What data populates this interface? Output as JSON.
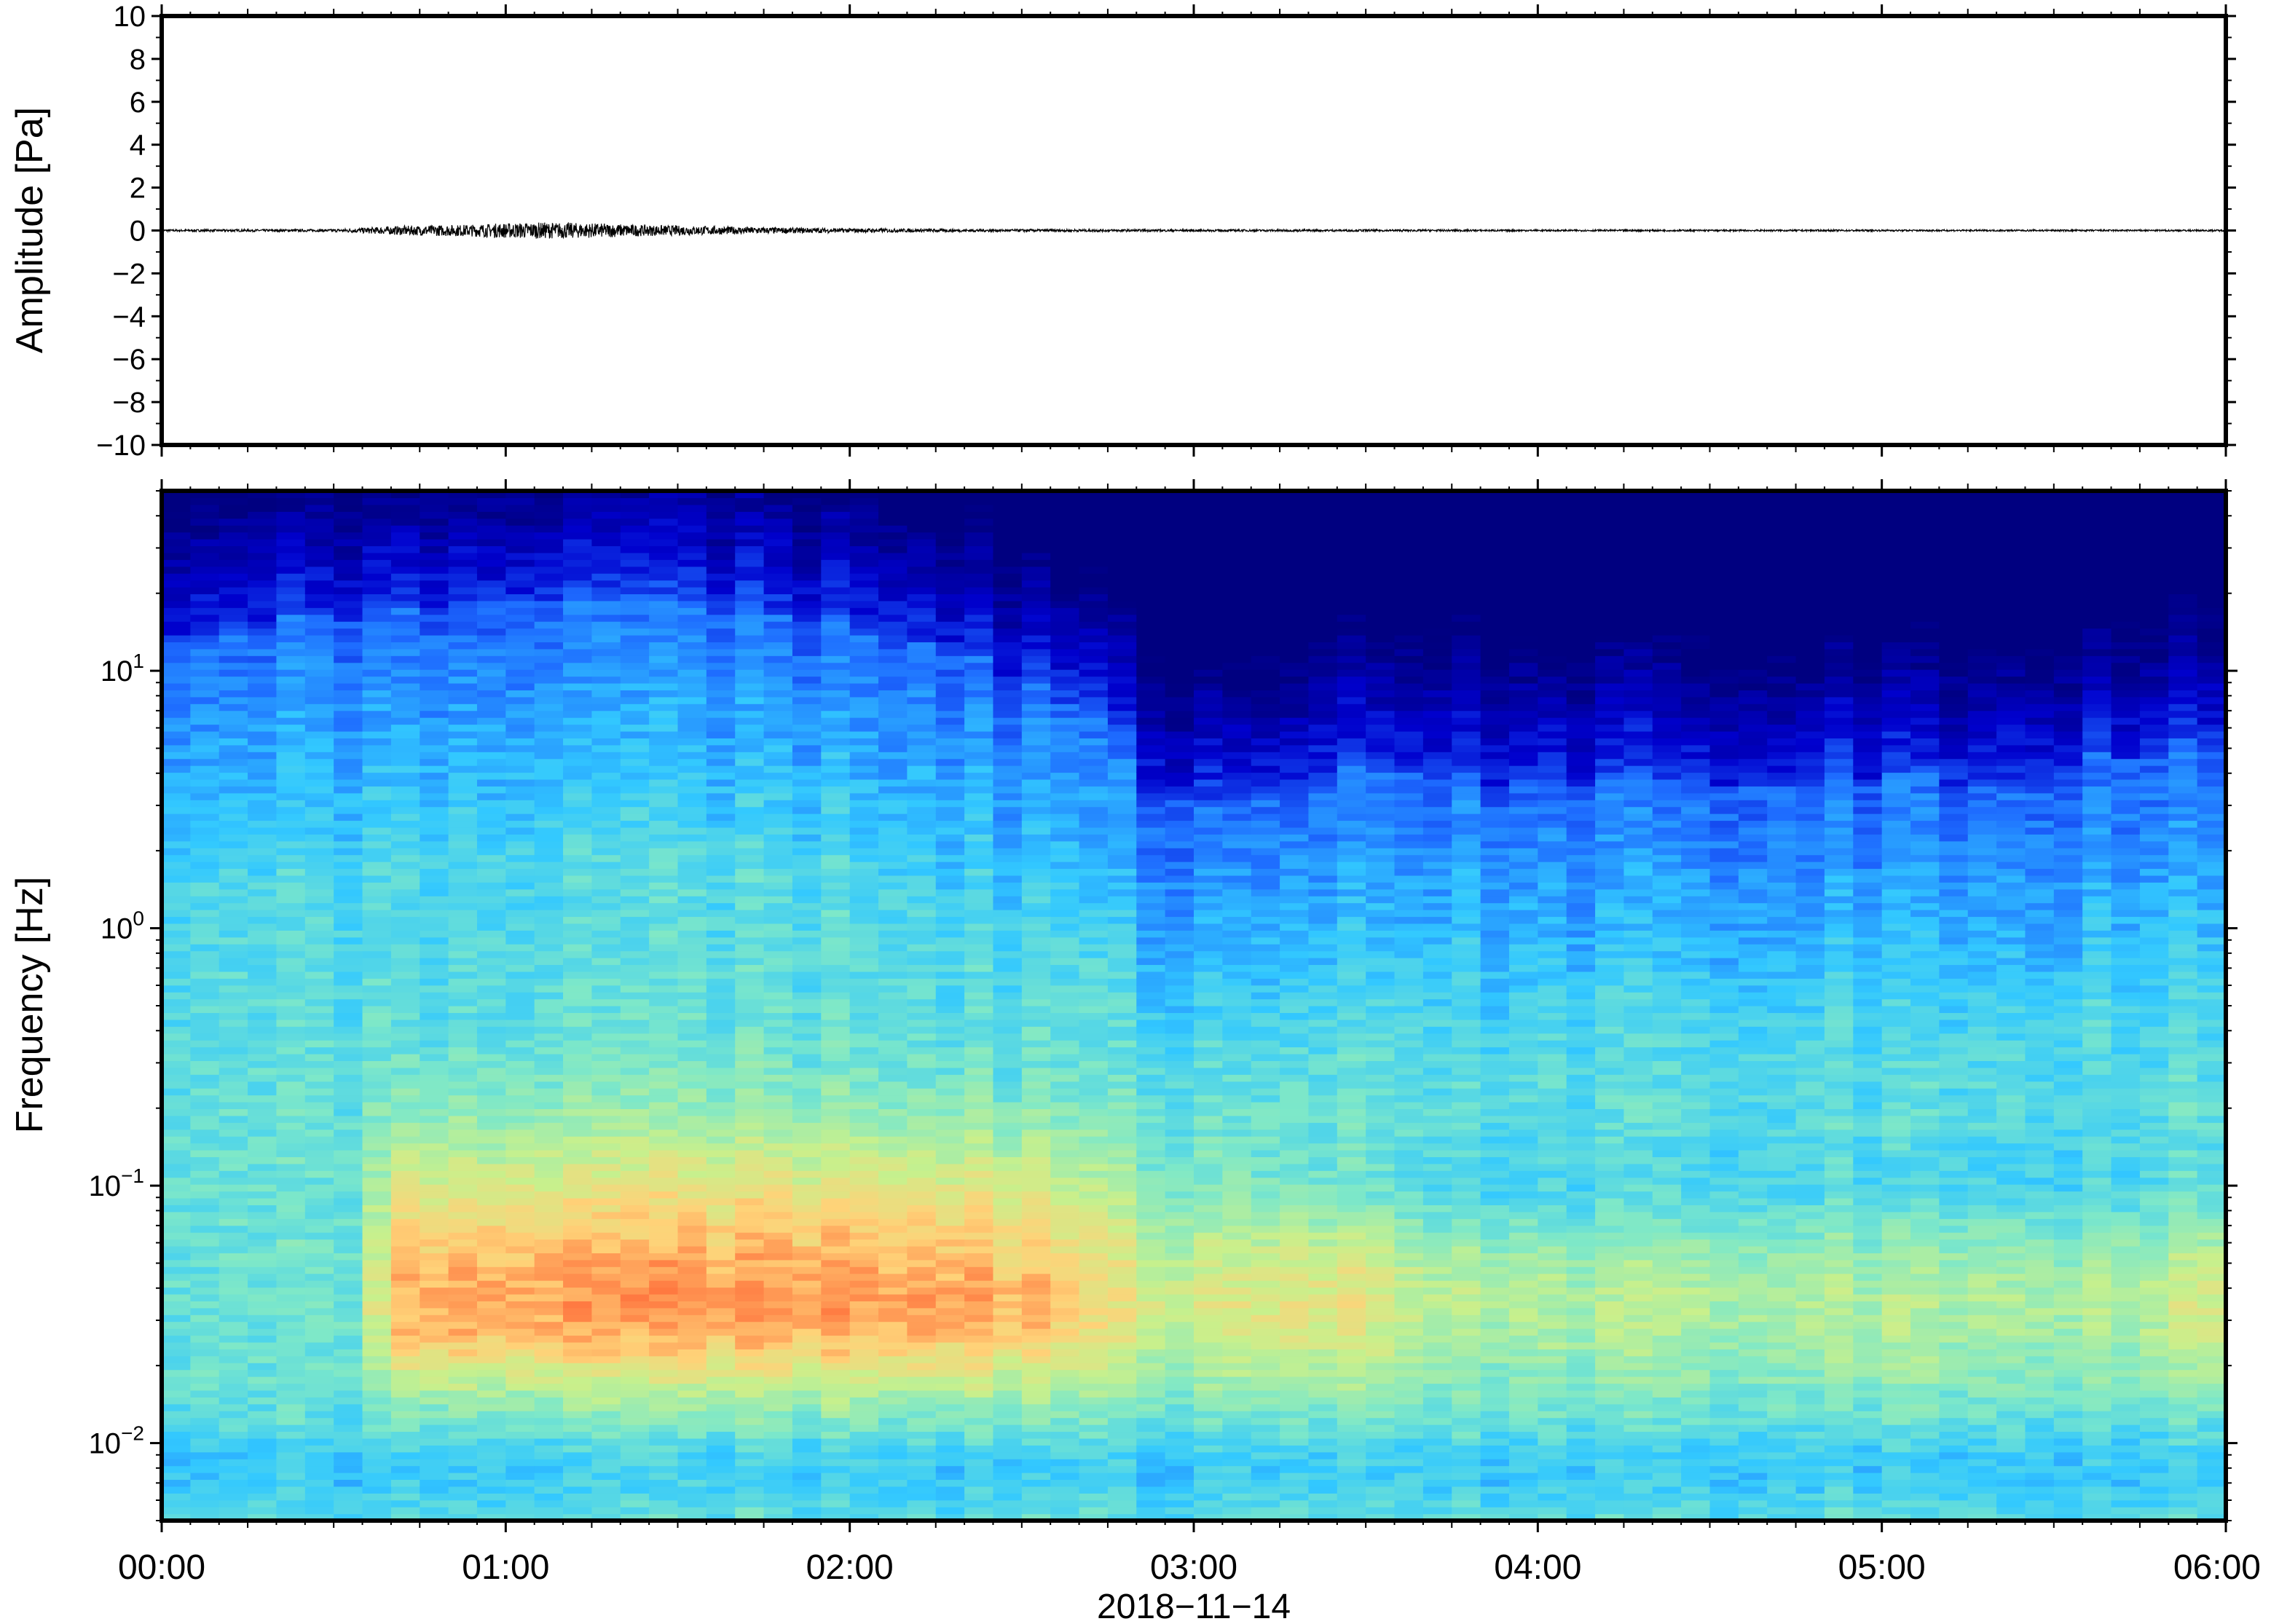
{
  "chart_data": [
    {
      "type": "line",
      "panel": "waveform",
      "ylabel": "Amplitude [Pa]",
      "ylim": [
        -10,
        10
      ],
      "yticks": [
        -10,
        -8,
        -6,
        -4,
        -2,
        0,
        2,
        4,
        6,
        8,
        10
      ],
      "ytick_labels": [
        "−10",
        "−8",
        "−6",
        "−4",
        "−2",
        "0",
        "2",
        "4",
        "6",
        "8",
        "10"
      ],
      "xlim": [
        "00:00",
        "06:00"
      ],
      "x_hours": [
        0,
        0.5,
        0.7,
        0.9,
        1.0,
        1.1,
        1.2,
        1.3,
        1.4,
        1.6,
        1.8,
        2.0,
        2.3,
        2.6,
        3.0,
        3.5,
        4.0,
        5.0,
        6.0
      ],
      "envelope": [
        0.05,
        0.06,
        0.22,
        0.28,
        0.35,
        0.38,
        0.36,
        0.32,
        0.26,
        0.2,
        0.14,
        0.1,
        0.07,
        0.06,
        0.05,
        0.05,
        0.04,
        0.04,
        0.04
      ],
      "grid": false
    },
    {
      "type": "heatmap",
      "panel": "spectrogram",
      "ylabel": "Frequency [Hz]",
      "yscale": "log",
      "ylim": [
        0.005,
        50
      ],
      "yticks": [
        0.01,
        0.1,
        1,
        10
      ],
      "ytick_labels": [
        {
          "base": "10",
          "exp": "−2"
        },
        {
          "base": "10",
          "exp": "−1"
        },
        {
          "base": "10",
          "exp": "0"
        },
        {
          "base": "10",
          "exp": "1"
        }
      ],
      "xlim": [
        "00:00",
        "06:00"
      ],
      "colormap": [
        "#000080",
        "#0000cd",
        "#1e6cff",
        "#32c8ff",
        "#7ee8c8",
        "#c8f08c",
        "#ffd278",
        "#ff7840"
      ],
      "description": "power concentrated at low frequencies, strongest 0.03-0.1 Hz from 00:40 to 03:30, high-frequency energy decreasing after 02:30",
      "grid": false
    }
  ],
  "xaxis": {
    "tick_labels": [
      "00:00",
      "01:00",
      "02:00",
      "03:00",
      "04:00",
      "05:00",
      "06:00"
    ],
    "date": "2018−11−14"
  }
}
